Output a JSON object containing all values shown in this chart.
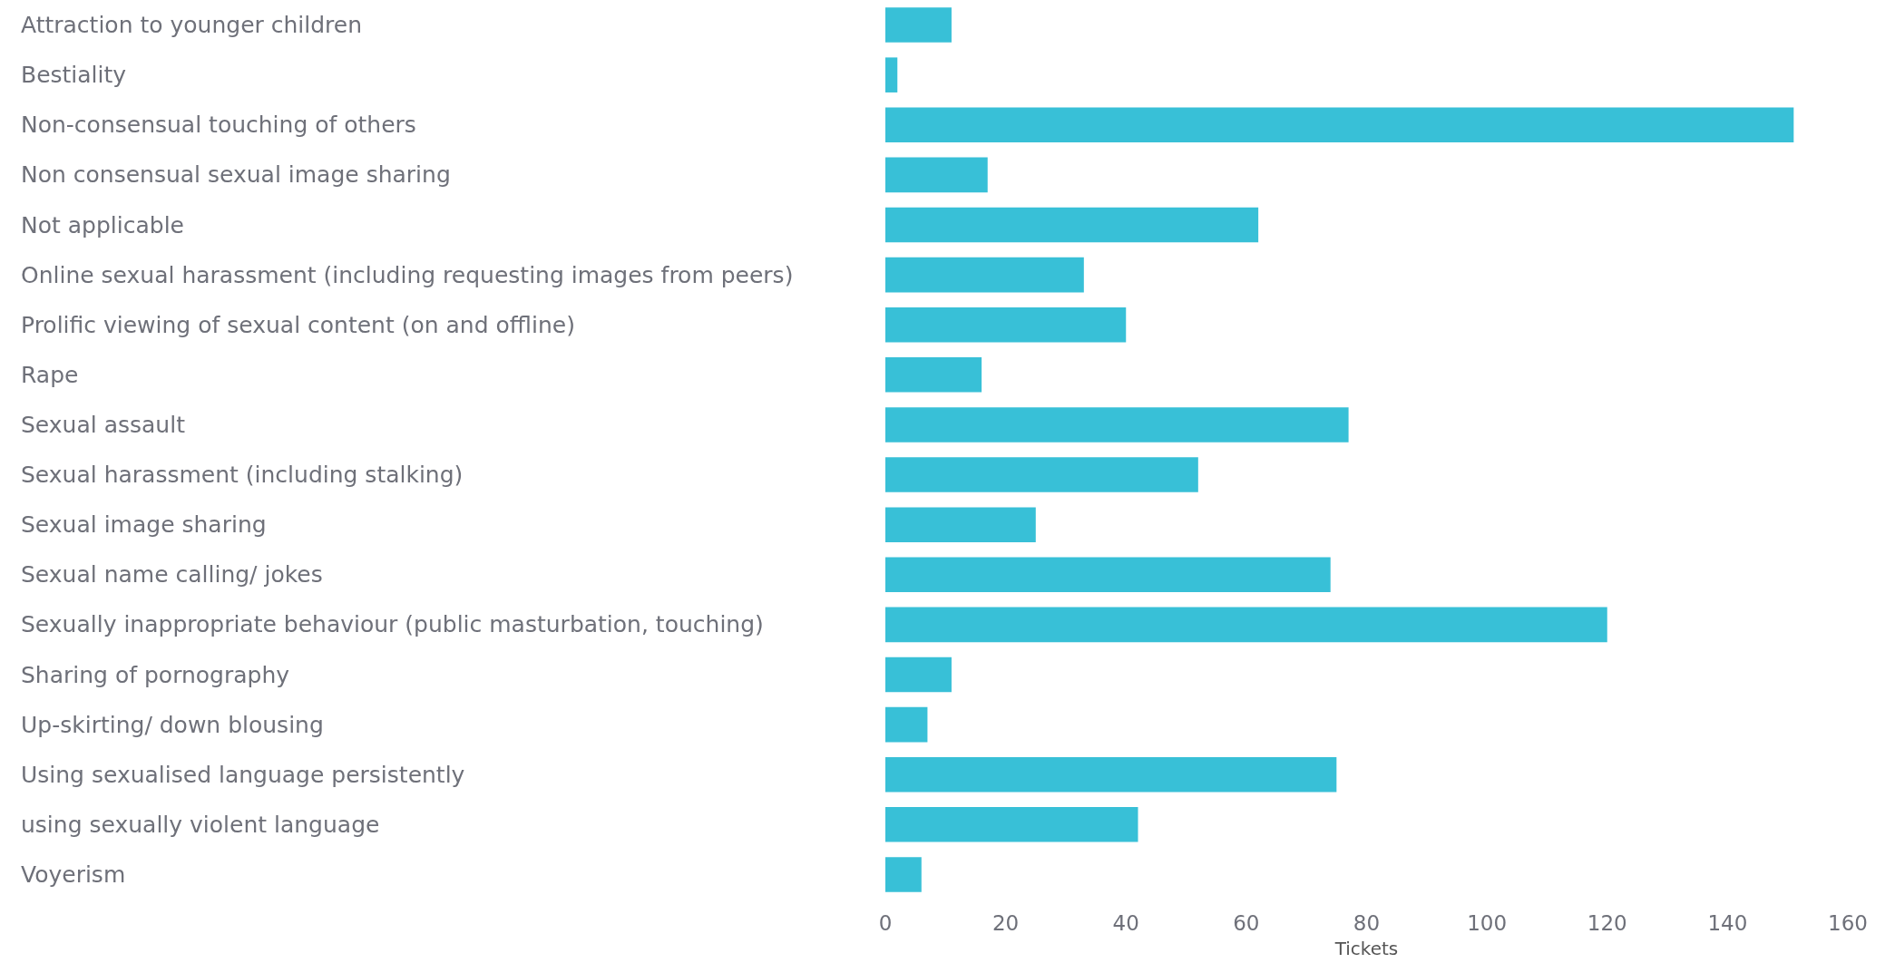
{
  "chart_data": {
    "type": "bar",
    "orientation": "horizontal",
    "xlabel": "Tickets",
    "categories": [
      "Attraction to younger children",
      "Bestiality",
      "Non-consensual touching of others",
      "Non consensual sexual image sharing",
      "Not applicable",
      "Online sexual harassment (including requesting images from peers)",
      "Prolific viewing of sexual content (on and offline)",
      "Rape",
      "Sexual assault",
      "Sexual harassment (including stalking)",
      "Sexual image sharing",
      "Sexual name calling/ jokes",
      "Sexually inappropriate behaviour (public masturbation, touching)",
      "Sharing of pornography",
      "Up-skirting/ down blousing",
      "Using sexualised language persistently",
      "using sexually violent language",
      "Voyerism"
    ],
    "values": [
      11,
      2,
      151,
      17,
      62,
      33,
      40,
      16,
      77,
      52,
      25,
      74,
      120,
      11,
      7,
      75,
      42,
      6
    ],
    "color": "#38c0d7",
    "xlim": [
      0,
      160
    ],
    "xticks": [
      0,
      20,
      40,
      60,
      80,
      100,
      120,
      140,
      160
    ],
    "grid": false
  }
}
